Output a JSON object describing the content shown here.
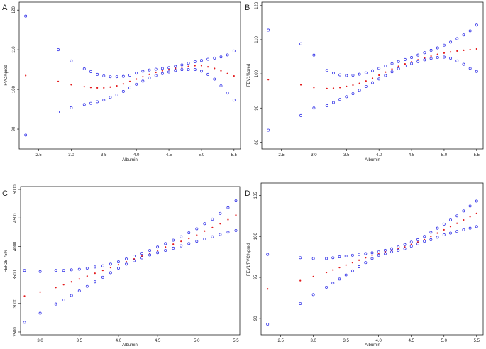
{
  "colors": {
    "band_marker": "#2323e6",
    "estimate_marker": "#e31a1c",
    "axis": "#000000",
    "text": "#222222"
  },
  "chart_data": [
    {
      "panel": "A",
      "type": "scatter",
      "xlabel": "Albumin",
      "ylabel": "FVC%pred",
      "xlim": [
        2.2,
        5.6
      ],
      "ylim": [
        85,
        122
      ],
      "xticks": [
        2.5,
        3.0,
        3.5,
        4.0,
        4.5,
        5.0,
        5.5
      ],
      "yticks": [
        90,
        100,
        110,
        120
      ],
      "x": [
        2.3,
        2.8,
        3.0,
        3.2,
        3.3,
        3.4,
        3.5,
        3.6,
        3.7,
        3.8,
        3.9,
        4.0,
        4.1,
        4.2,
        4.3,
        4.4,
        4.5,
        4.6,
        4.7,
        4.8,
        4.9,
        5.0,
        5.1,
        5.2,
        5.3,
        5.4,
        5.5
      ],
      "series": [
        {
          "name": "upper",
          "marker": "open-circle",
          "values": [
            118.5,
            110.0,
            107.2,
            105.2,
            104.5,
            103.8,
            103.4,
            103.2,
            103.2,
            103.3,
            103.6,
            104.1,
            104.6,
            104.9,
            105.1,
            105.3,
            105.5,
            105.8,
            106.2,
            106.6,
            107.0,
            107.3,
            107.6,
            107.9,
            108.2,
            108.7,
            109.7
          ]
        },
        {
          "name": "estimate",
          "marker": "filled-dot",
          "values": [
            103.5,
            102.0,
            101.2,
            100.7,
            100.5,
            100.4,
            100.4,
            100.6,
            100.9,
            101.4,
            102.0,
            102.6,
            103.2,
            103.8,
            104.3,
            104.7,
            105.0,
            105.3,
            105.6,
            105.8,
            106.0,
            106.0,
            105.7,
            105.3,
            104.7,
            104.0,
            103.4
          ]
        },
        {
          "name": "lower",
          "marker": "open-circle",
          "values": [
            88.5,
            94.3,
            95.4,
            96.2,
            96.5,
            96.9,
            97.3,
            98.0,
            98.6,
            99.5,
            100.4,
            101.3,
            102.1,
            102.9,
            103.5,
            104.0,
            104.4,
            104.8,
            105.0,
            105.0,
            105.0,
            104.6,
            103.8,
            102.6,
            100.9,
            99.1,
            97.3
          ]
        }
      ]
    },
    {
      "panel": "B",
      "type": "scatter",
      "xlabel": "Albumin",
      "ylabel": "FEV1%pred",
      "xlim": [
        2.2,
        5.6
      ],
      "ylim": [
        78,
        121
      ],
      "xticks": [
        2.5,
        3.0,
        3.5,
        4.0,
        4.5,
        5.0,
        5.5
      ],
      "yticks": [
        80,
        90,
        100,
        110,
        120
      ],
      "x": [
        2.3,
        2.8,
        3.0,
        3.2,
        3.3,
        3.4,
        3.5,
        3.6,
        3.7,
        3.8,
        3.9,
        4.0,
        4.1,
        4.2,
        4.3,
        4.4,
        4.5,
        4.6,
        4.7,
        4.8,
        4.9,
        5.0,
        5.1,
        5.2,
        5.3,
        5.4,
        5.5
      ],
      "series": [
        {
          "name": "upper",
          "marker": "open-circle",
          "values": [
            112.8,
            108.8,
            105.5,
            101.0,
            100.2,
            99.7,
            99.5,
            99.6,
            99.9,
            100.3,
            100.9,
            101.6,
            102.3,
            103.0,
            103.6,
            104.2,
            104.8,
            105.5,
            106.2,
            106.9,
            107.6,
            108.4,
            109.3,
            110.3,
            111.4,
            112.6,
            114.3
          ]
        },
        {
          "name": "estimate",
          "marker": "filled-dot",
          "values": [
            98.3,
            96.8,
            96.0,
            95.7,
            95.8,
            96.0,
            96.3,
            96.7,
            97.2,
            97.9,
            98.7,
            99.6,
            100.5,
            101.4,
            102.2,
            102.9,
            103.5,
            104.1,
            104.7,
            105.2,
            105.7,
            106.1,
            106.4,
            106.7,
            106.9,
            107.1,
            107.3
          ]
        },
        {
          "name": "lower",
          "marker": "open-circle",
          "values": [
            83.5,
            87.8,
            90.0,
            90.7,
            91.6,
            92.5,
            93.3,
            94.2,
            95.2,
            96.3,
            97.4,
            98.5,
            99.5,
            100.6,
            101.5,
            102.3,
            103.0,
            103.6,
            104.1,
            104.5,
            104.8,
            104.9,
            104.6,
            103.8,
            102.8,
            101.6,
            100.7
          ]
        }
      ]
    },
    {
      "panel": "C",
      "type": "scatter",
      "xlabel": "Albumin",
      "ylabel": "FEF25-75%",
      "xlim": [
        2.75,
        5.55
      ],
      "ylim": [
        2450,
        5050
      ],
      "xticks": [
        3.0,
        3.5,
        4.0,
        4.5,
        5.0,
        5.5
      ],
      "yticks": [
        2500,
        3000,
        3500,
        4000,
        4500,
        5000
      ],
      "x": [
        2.8,
        3.0,
        3.2,
        3.3,
        3.4,
        3.5,
        3.6,
        3.7,
        3.8,
        3.9,
        4.0,
        4.1,
        4.2,
        4.3,
        4.4,
        4.5,
        4.6,
        4.7,
        4.8,
        4.9,
        5.0,
        5.1,
        5.2,
        5.3,
        5.4,
        5.5
      ],
      "series": [
        {
          "name": "upper",
          "marker": "open-circle",
          "values": [
            3580,
            3560,
            3580,
            3580,
            3590,
            3600,
            3620,
            3640,
            3660,
            3690,
            3730,
            3780,
            3830,
            3880,
            3930,
            3990,
            4050,
            4110,
            4170,
            4240,
            4310,
            4400,
            4480,
            4580,
            4680,
            4800
          ]
        },
        {
          "name": "estimate",
          "marker": "filled-dot",
          "values": [
            3130,
            3200,
            3280,
            3330,
            3380,
            3430,
            3480,
            3530,
            3580,
            3630,
            3680,
            3730,
            3780,
            3830,
            3880,
            3930,
            3990,
            4040,
            4090,
            4140,
            4200,
            4270,
            4330,
            4400,
            4470,
            4550
          ]
        },
        {
          "name": "lower",
          "marker": "open-circle",
          "values": [
            2670,
            2830,
            2990,
            3060,
            3140,
            3220,
            3300,
            3380,
            3460,
            3540,
            3620,
            3690,
            3750,
            3800,
            3850,
            3890,
            3930,
            3970,
            4010,
            4050,
            4090,
            4130,
            4170,
            4210,
            4250,
            4280
          ]
        }
      ]
    },
    {
      "panel": "D",
      "type": "scatter",
      "xlabel": "Albumin",
      "ylabel": "FEV1/FVC%pred",
      "xlim": [
        2.2,
        5.6
      ],
      "ylim": [
        88,
        106.5
      ],
      "xticks": [
        2.5,
        3.0,
        3.5,
        4.0,
        4.5,
        5.0,
        5.5
      ],
      "yticks": [
        90,
        95,
        100,
        105
      ],
      "x": [
        2.3,
        2.8,
        3.0,
        3.2,
        3.3,
        3.4,
        3.5,
        3.6,
        3.7,
        3.8,
        3.9,
        4.0,
        4.1,
        4.2,
        4.3,
        4.4,
        4.5,
        4.6,
        4.7,
        4.8,
        4.9,
        5.0,
        5.1,
        5.2,
        5.3,
        5.4,
        5.5
      ],
      "series": [
        {
          "name": "upper",
          "marker": "open-circle",
          "values": [
            97.8,
            97.4,
            97.3,
            97.3,
            97.4,
            97.5,
            97.6,
            97.7,
            97.8,
            97.9,
            98.0,
            98.1,
            98.3,
            98.5,
            98.7,
            99.0,
            99.3,
            99.6,
            100.0,
            100.5,
            101.0,
            101.5,
            102.0,
            102.5,
            103.1,
            103.7,
            104.3
          ]
        },
        {
          "name": "estimate",
          "marker": "filled-dot",
          "values": [
            93.6,
            94.6,
            95.1,
            95.6,
            95.9,
            96.2,
            96.5,
            96.8,
            97.1,
            97.4,
            97.7,
            97.9,
            98.1,
            98.3,
            98.5,
            98.7,
            99.0,
            99.3,
            99.6,
            100.0,
            100.4,
            100.8,
            101.2,
            101.6,
            102.0,
            102.4,
            102.8
          ]
        },
        {
          "name": "lower",
          "marker": "open-circle",
          "values": [
            89.3,
            91.8,
            92.9,
            93.8,
            94.3,
            94.8,
            95.3,
            95.8,
            96.3,
            96.8,
            97.3,
            97.7,
            97.9,
            98.1,
            98.3,
            98.5,
            98.8,
            99.1,
            99.4,
            99.6,
            99.9,
            100.2,
            100.4,
            100.6,
            100.8,
            101.0,
            101.2
          ]
        }
      ]
    }
  ]
}
